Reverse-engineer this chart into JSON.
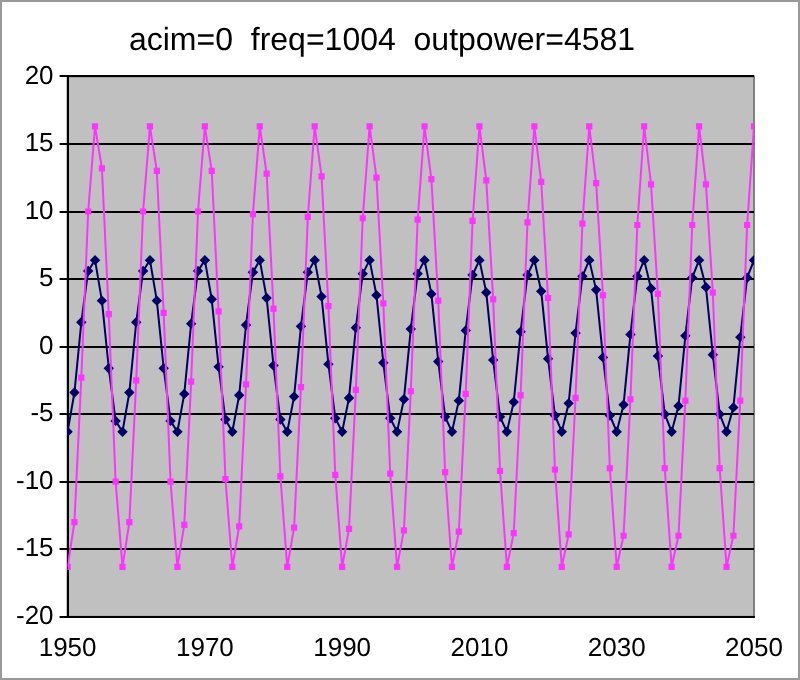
{
  "chart_data": {
    "type": "line",
    "title": "acim=0  freq=1004  outpower=4581",
    "x": [
      1950,
      1951,
      1952,
      1953,
      1954,
      1955,
      1956,
      1957,
      1958,
      1959,
      1960,
      1961,
      1962,
      1963,
      1964,
      1965,
      1966,
      1967,
      1968,
      1969,
      1970,
      1971,
      1972,
      1973,
      1974,
      1975,
      1976,
      1977,
      1978,
      1979,
      1980,
      1981,
      1982,
      1983,
      1984,
      1985,
      1986,
      1987,
      1988,
      1989,
      1990,
      1991,
      1992,
      1993,
      1994,
      1995,
      1996,
      1997,
      1998,
      1999,
      2000,
      2001,
      2002,
      2003,
      2004,
      2005,
      2006,
      2007,
      2008,
      2009,
      2010,
      2011,
      2012,
      2013,
      2014,
      2015,
      2016,
      2017,
      2018,
      2019,
      2020,
      2021,
      2022,
      2023,
      2024,
      2025,
      2026,
      2027,
      2028,
      2029,
      2030,
      2031,
      2032,
      2033,
      2034,
      2035,
      2036,
      2037,
      2038,
      2039,
      2040,
      2041,
      2042,
      2043,
      2044,
      2045,
      2046,
      2047,
      2048,
      2049,
      2050
    ],
    "series": [
      {
        "color": "#ff33ff",
        "marker": "square",
        "values": [
          -16.3,
          -13,
          -2.3,
          10,
          16.3,
          13.2,
          2.4,
          -10,
          -16.3,
          -13,
          -2.5,
          10,
          16.3,
          13,
          2.5,
          -10,
          -16.3,
          -13.2,
          -2.6,
          10,
          16.3,
          13,
          2.6,
          -9.8,
          -16.3,
          -13.3,
          -2.8,
          9.8,
          16.3,
          12.8,
          2.8,
          -9.6,
          -16.3,
          -13.4,
          -3,
          9.6,
          16.3,
          12.6,
          3,
          -9.5,
          -16.3,
          -13.5,
          -3.2,
          9.5,
          16.3,
          12.5,
          3.2,
          -9.4,
          -16.3,
          -13.6,
          -3.3,
          9.4,
          16.3,
          12.4,
          3.4,
          -9.3,
          -16.3,
          -13.7,
          -3.5,
          9.3,
          16.3,
          12.3,
          3.5,
          -9.2,
          -16.3,
          -13.8,
          -3.6,
          9.2,
          16.3,
          12.2,
          3.6,
          -9.1,
          -16.3,
          -13.9,
          -3.8,
          9.1,
          16.3,
          12.1,
          3.8,
          -9,
          -16.3,
          -14,
          -3.9,
          9,
          16.3,
          12,
          3.9,
          -9,
          -16.3,
          -14,
          -4,
          9,
          16.3,
          12,
          4,
          -9,
          -16.3,
          -14,
          -4,
          9,
          16.3
        ]
      },
      {
        "color": "#000066",
        "marker": "diamond",
        "values": [
          -6.3,
          -3.4,
          1.8,
          5.6,
          6.4,
          3.4,
          -1.6,
          -5.5,
          -6.3,
          -3.4,
          1.8,
          5.6,
          6.4,
          3.4,
          -1.6,
          -5.5,
          -6.3,
          -3.5,
          1.7,
          5.6,
          6.4,
          3.5,
          -1.5,
          -5.4,
          -6.3,
          -3.6,
          1.6,
          5.5,
          6.4,
          3.6,
          -1.4,
          -5.4,
          -6.3,
          -3.7,
          1.5,
          5.5,
          6.4,
          3.7,
          -1.3,
          -5.3,
          -6.3,
          -3.8,
          1.4,
          5.4,
          6.4,
          3.8,
          -1.2,
          -5.3,
          -6.3,
          -3.9,
          1.3,
          5.4,
          6.4,
          3.9,
          -1.1,
          -5.2,
          -6.3,
          -4,
          1.2,
          5.3,
          6.4,
          4,
          -1,
          -5.2,
          -6.3,
          -4.1,
          1.1,
          5.3,
          6.4,
          4.1,
          -0.9,
          -5.1,
          -6.3,
          -4.2,
          1,
          5.2,
          6.4,
          4.2,
          -0.8,
          -5.1,
          -6.3,
          -4.3,
          0.9,
          5.2,
          6.4,
          4.3,
          -0.7,
          -5,
          -6.3,
          -4.4,
          0.8,
          5.1,
          6.4,
          4.4,
          -0.6,
          -5,
          -6.3,
          -4.5,
          0.7,
          5.1,
          6.4
        ]
      }
    ],
    "xlim": [
      1950,
      2050
    ],
    "xticks": [
      1950,
      1970,
      1990,
      2010,
      2030,
      2050
    ],
    "ylim": [
      -20,
      20
    ],
    "yticks": [
      -20,
      -15,
      -10,
      -5,
      0,
      5,
      10,
      15,
      20
    ],
    "grid": "y",
    "legend": false,
    "line_style": "solid"
  }
}
